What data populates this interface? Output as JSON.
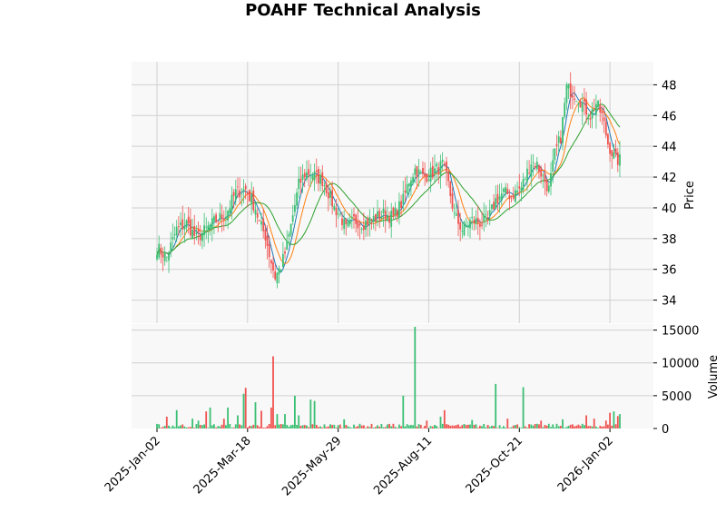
{
  "chart_data": {
    "type": "candlestick",
    "title": "POAHF Technical Analysis",
    "ylabel": "Price",
    "volume_label": "Volume",
    "x_tick_labels": [
      "2025-Jan-02",
      "2025-Mar-18",
      "2025-May-29",
      "2025-Aug-11",
      "2025-Oct-21",
      "2026-Jan-02"
    ],
    "price_ylim": [
      32.5,
      49.5
    ],
    "price_ticks": [
      34,
      36,
      38,
      40,
      42,
      44,
      46,
      48
    ],
    "volume_ylim": [
      0,
      15500
    ],
    "volume_ticks": [
      0,
      5000,
      10000,
      15000
    ],
    "grid": true,
    "colors": {
      "up": "#26a69a",
      "up_candle": "#3bbf73",
      "down": "#ef5350",
      "ma_short": "#1f77b4",
      "ma_mid": "#ff7f0e",
      "ma_long": "#2ca02c",
      "panel_bg": "#f8f8f8",
      "grid": "#d0d0d0"
    },
    "close_anchors": [
      [
        0,
        37.4
      ],
      [
        5,
        36.8
      ],
      [
        10,
        38.6
      ],
      [
        15,
        39.0
      ],
      [
        20,
        38.0
      ],
      [
        25,
        38.6
      ],
      [
        30,
        39.2
      ],
      [
        35,
        39.6
      ],
      [
        40,
        41.0
      ],
      [
        45,
        41.2
      ],
      [
        50,
        40.0
      ],
      [
        52,
        39.0
      ],
      [
        55,
        38.2
      ],
      [
        57,
        37.0
      ],
      [
        60,
        35.5
      ],
      [
        63,
        36.2
      ],
      [
        66,
        37.5
      ],
      [
        69,
        39.5
      ],
      [
        72,
        41.5
      ],
      [
        75,
        42.2
      ],
      [
        78,
        42.3
      ],
      [
        81,
        42.0
      ],
      [
        84,
        41.8
      ],
      [
        87,
        41.0
      ],
      [
        90,
        40.0
      ],
      [
        93,
        39.5
      ],
      [
        96,
        38.6
      ],
      [
        100,
        39.2
      ],
      [
        105,
        39.0
      ],
      [
        110,
        39.3
      ],
      [
        115,
        39.6
      ],
      [
        120,
        39.4
      ],
      [
        125,
        40.5
      ],
      [
        128,
        41.8
      ],
      [
        131,
        42.5
      ],
      [
        135,
        42.0
      ],
      [
        140,
        42.3
      ],
      [
        145,
        42.8
      ],
      [
        148,
        41.5
      ],
      [
        151,
        39.5
      ],
      [
        155,
        38.6
      ],
      [
        160,
        39.2
      ],
      [
        165,
        39.0
      ],
      [
        168,
        39.2
      ],
      [
        172,
        40.5
      ],
      [
        176,
        41.0
      ],
      [
        180,
        40.8
      ],
      [
        185,
        41.3
      ],
      [
        190,
        43.0
      ],
      [
        193,
        42.8
      ],
      [
        196,
        42.0
      ],
      [
        199,
        41.2
      ],
      [
        202,
        43.5
      ],
      [
        205,
        44.6
      ],
      [
        208,
        47.8
      ],
      [
        211,
        47.5
      ],
      [
        214,
        47.2
      ],
      [
        217,
        46.5
      ],
      [
        220,
        46.0
      ],
      [
        223,
        46.8
      ],
      [
        226,
        46.0
      ],
      [
        229,
        44.2
      ],
      [
        231,
        43.6
      ],
      [
        233,
        43.1
      ]
    ],
    "volume_spikes": [
      [
        5,
        1800
      ],
      [
        10,
        2800
      ],
      [
        18,
        1500
      ],
      [
        21,
        1200
      ],
      [
        25,
        2600
      ],
      [
        27,
        3200
      ],
      [
        34,
        1500
      ],
      [
        36,
        3200
      ],
      [
        41,
        2000
      ],
      [
        44,
        5300
      ],
      [
        45,
        6200
      ],
      [
        50,
        4000
      ],
      [
        53,
        2700
      ],
      [
        58,
        3200
      ],
      [
        59,
        11000
      ],
      [
        61,
        2200
      ],
      [
        65,
        2200
      ],
      [
        70,
        5000
      ],
      [
        72,
        2000
      ],
      [
        78,
        4400
      ],
      [
        80,
        4200
      ],
      [
        95,
        1400
      ],
      [
        100,
        600
      ],
      [
        118,
        700
      ],
      [
        125,
        5000
      ],
      [
        131,
        15500
      ],
      [
        137,
        1200
      ],
      [
        144,
        1800
      ],
      [
        146,
        2800
      ],
      [
        160,
        1300
      ],
      [
        172,
        6800
      ],
      [
        178,
        1500
      ],
      [
        186,
        6300
      ],
      [
        195,
        1200
      ],
      [
        206,
        1400
      ],
      [
        218,
        2000
      ],
      [
        222,
        1500
      ],
      [
        228,
        1200
      ],
      [
        230,
        2400
      ],
      [
        232,
        2600
      ],
      [
        234,
        1900
      ],
      [
        235,
        2200
      ]
    ]
  }
}
